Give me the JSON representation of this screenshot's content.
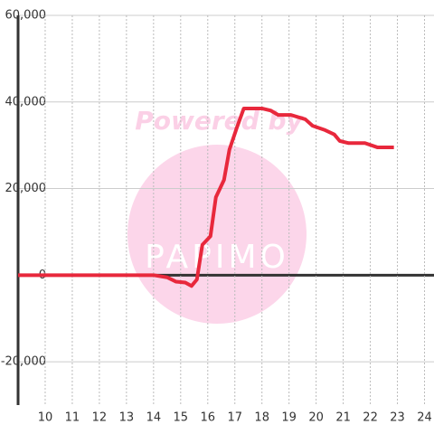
{
  "chart_data": {
    "type": "line",
    "watermark": [
      "Powered by",
      "PAPIMO"
    ],
    "x": [
      9.0,
      14.0,
      14.5,
      14.83,
      15.17,
      15.4,
      15.6,
      15.8,
      16.1,
      16.3,
      16.6,
      16.8,
      17.07,
      17.33,
      18.0,
      18.33,
      18.6,
      19.07,
      19.6,
      19.87,
      20.33,
      20.67,
      20.87,
      21.2,
      21.8,
      22.27,
      22.87
    ],
    "series": [
      {
        "color": "#e8283c",
        "values": [
          0,
          0,
          -500,
          -1500,
          -1700,
          -2500,
          -1000,
          7000,
          9000,
          18000,
          22000,
          29000,
          34000,
          38500,
          38500,
          38000,
          37000,
          37000,
          36000,
          34500,
          33500,
          32500,
          31000,
          30500,
          30500,
          29500,
          29500
        ]
      }
    ],
    "xlim": [
      9,
      24.35
    ],
    "xticks": [
      10,
      11,
      12,
      13,
      14,
      15,
      16,
      17,
      18,
      19,
      20,
      21,
      22,
      23,
      24
    ],
    "ylim": [
      -30000,
      60000
    ],
    "yticks": [
      {
        "value": -20000,
        "label": "-20,000"
      },
      0,
      {
        "value": 20000,
        "label": "20,000"
      },
      {
        "value": 40000,
        "label": "40,000"
      },
      {
        "value": 60000,
        "label": "60,000"
      }
    ],
    "grid": true
  }
}
